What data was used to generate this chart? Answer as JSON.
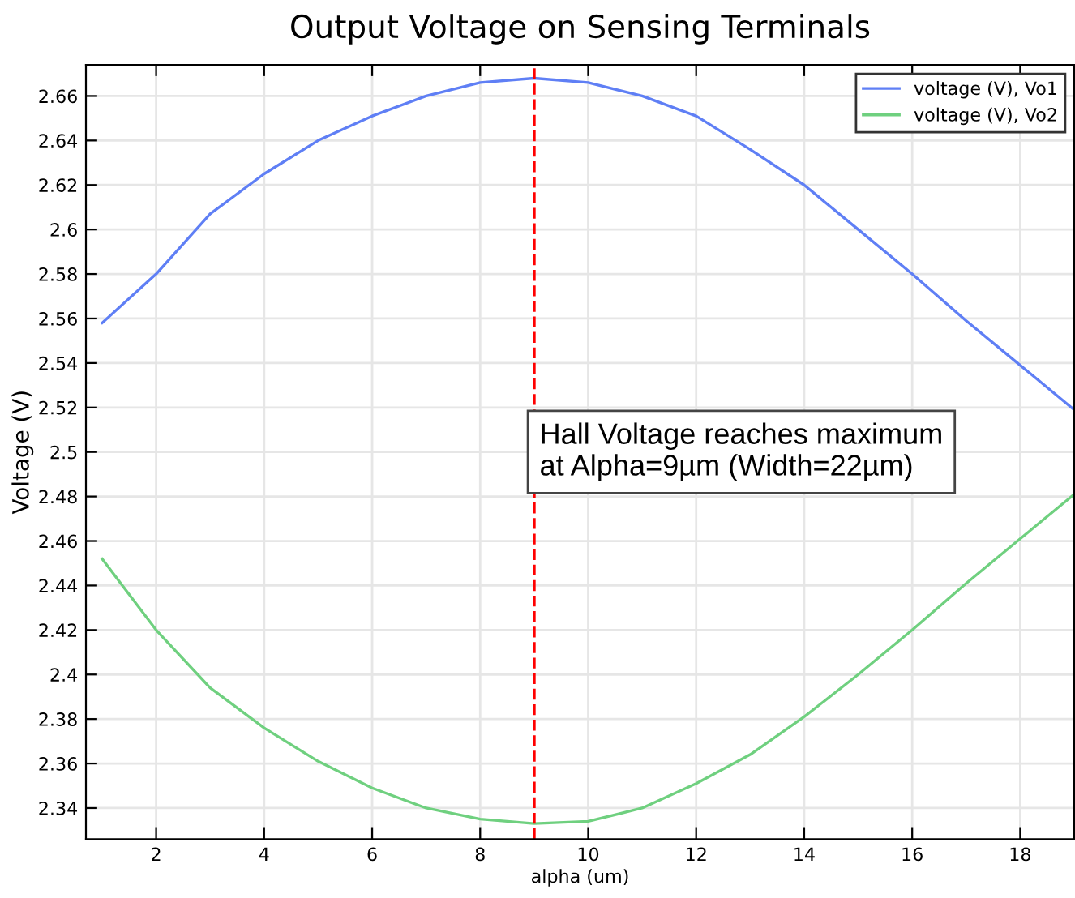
{
  "chart_data": {
    "type": "line",
    "title": "Output Voltage on Sensing Terminals",
    "xlabel": "alpha (um)",
    "ylabel": "Voltage (V)",
    "x": [
      1,
      2,
      3,
      4,
      5,
      6,
      7,
      8,
      9,
      10,
      11,
      12,
      13,
      14,
      15,
      16,
      17,
      18,
      19
    ],
    "series": [
      {
        "name": "voltage (V), Vo1",
        "color": "#5f7ff5",
        "values": [
          2.558,
          2.58,
          2.607,
          2.625,
          2.64,
          2.651,
          2.66,
          2.666,
          2.668,
          2.666,
          2.66,
          2.651,
          2.636,
          2.62,
          2.6,
          2.58,
          2.559,
          2.539,
          2.519
        ]
      },
      {
        "name": "voltage (V), Vo2",
        "color": "#6fd07f",
        "values": [
          2.452,
          2.42,
          2.394,
          2.376,
          2.361,
          2.349,
          2.34,
          2.335,
          2.333,
          2.334,
          2.34,
          2.351,
          2.364,
          2.381,
          2.4,
          2.42,
          2.441,
          2.461,
          2.481
        ]
      }
    ],
    "xlim": [
      0.7,
      19
    ],
    "ylim": [
      2.326,
      2.674
    ],
    "xticks": [
      2,
      4,
      6,
      8,
      10,
      12,
      14,
      16,
      18
    ],
    "yticks": [
      2.34,
      2.36,
      2.38,
      {
        "value": 2.4,
        "label": "2.4"
      },
      2.42,
      2.44,
      2.46,
      2.48,
      {
        "value": 2.5,
        "label": "2.5"
      },
      2.52,
      2.54,
      2.56,
      2.58,
      {
        "value": 2.6,
        "label": "2.6"
      },
      2.62,
      2.64,
      2.66
    ],
    "ref_lines": [
      {
        "axis": "x",
        "value": 9,
        "color": "#ff0000",
        "line_style": "dashed"
      }
    ],
    "annotations": [
      {
        "text": "Hall Voltage reaches maximum\nat Alpha=9µm (Width=22µm)",
        "x": 9,
        "y": 2.5
      }
    ],
    "grid": true,
    "legend": "top right",
    "line_style": "solid",
    "marker": "none"
  }
}
